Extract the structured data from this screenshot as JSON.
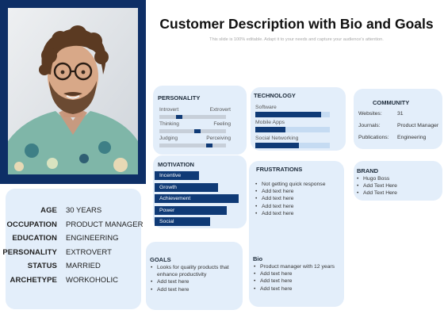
{
  "header": {
    "title": "Customer Description with Bio and Goals",
    "subtitle": "This slide is 100% editable. Adapt it to your needs and capture your audience's attention."
  },
  "profile": {
    "photo_icon": "person-portrait",
    "fields": [
      {
        "label": "AGE",
        "value": "30 YEARS"
      },
      {
        "label": "OCCUPATION",
        "value": "PRODUCT MANAGER"
      },
      {
        "label": "EDUCATION",
        "value": "ENGINEERING"
      },
      {
        "label": "PERSONALITY",
        "value": "EXTROVERT"
      },
      {
        "label": "STATUS",
        "value": "MARRIED"
      },
      {
        "label": "ARCHETYPE",
        "value": "WORKOHOLIC"
      }
    ]
  },
  "personality": {
    "title": "PERSONALITY",
    "traits": [
      {
        "left": "Introvert",
        "right": "Extrovert",
        "level": 0.3
      },
      {
        "left": "Thinking",
        "right": "Feeling",
        "level": 0.57
      },
      {
        "left": "Judging",
        "right": "Perceiving",
        "level": 0.75
      }
    ]
  },
  "motivation": {
    "title": "MOTIVATION",
    "items": [
      {
        "label": "Incentive",
        "level": 0.53
      },
      {
        "label": "Growth",
        "level": 0.75
      },
      {
        "label": "Achievement",
        "level": 1.0
      },
      {
        "label": "Power",
        "level": 0.86
      },
      {
        "label": "Social",
        "level": 0.66
      }
    ]
  },
  "goals": {
    "title": "GOALS",
    "items": [
      "Looks for quality products that enhance productivity",
      "Add text here",
      "Add text here"
    ]
  },
  "technology": {
    "title": "TECHNOLOGY",
    "items": [
      {
        "label": "Software",
        "level": 0.88
      },
      {
        "label": "Mobile Apps",
        "level": 0.4
      },
      {
        "label": "Social Networking",
        "level": 0.58
      }
    ]
  },
  "frustrations": {
    "title": "FRUSTRATIONS",
    "items": [
      "Not getting quick response",
      "Add text here",
      "Add text here",
      "Add text here",
      "Add text here"
    ]
  },
  "bio": {
    "title": "Bio",
    "items": [
      "Product manager with 12 years",
      "Add text here",
      "Add text here",
      "Add text here"
    ]
  },
  "community": {
    "title": "COMMUNITY",
    "rows": [
      {
        "label": "Websites:",
        "value": "31"
      },
      {
        "label": "Journals:",
        "value": "Product Manager"
      },
      {
        "label": "Publications:",
        "value": "Engineering"
      }
    ]
  },
  "brand": {
    "title": "BRAND",
    "items": [
      "Hugo Boss",
      "Add Text Here",
      "Add Text Here"
    ]
  },
  "colors": {
    "navy": "#0f3a76",
    "frame": "#0e2f66",
    "card": "#e3eefa",
    "track": "#c5dbf2"
  }
}
